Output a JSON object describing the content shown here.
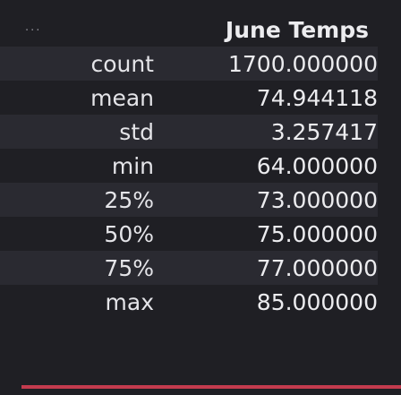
{
  "output_menu": {
    "icon": "more-horizontal-icon",
    "glyph": "···"
  },
  "table": {
    "column_header": "June Temps",
    "rows": [
      {
        "label": "count",
        "value": "1700.000000"
      },
      {
        "label": "mean",
        "value": "74.944118"
      },
      {
        "label": "std",
        "value": "3.257417"
      },
      {
        "label": "min",
        "value": "64.000000"
      },
      {
        "label": "25%",
        "value": "73.000000"
      },
      {
        "label": "50%",
        "value": "75.000000"
      },
      {
        "label": "75%",
        "value": "77.000000"
      },
      {
        "label": "max",
        "value": "85.000000"
      }
    ]
  },
  "colors": {
    "background": "#1f1f24",
    "row_stripe": "#2a2a31",
    "text": "#ececef",
    "accent_bar": "#c33b4e"
  }
}
